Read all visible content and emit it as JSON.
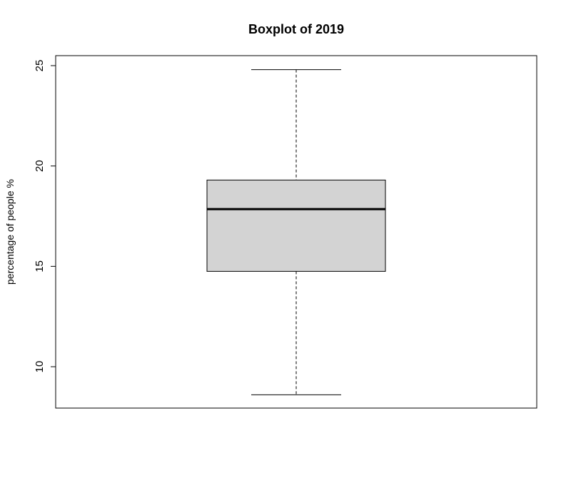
{
  "chart_data": {
    "type": "boxplot",
    "title": "Boxplot of 2019",
    "xlabel": "",
    "ylabel": "percentage of people %",
    "ylim": [
      8,
      25.5
    ],
    "yticks": [
      10,
      15,
      20,
      25
    ],
    "ytick_labels": [
      "10",
      "15",
      "20",
      "25"
    ],
    "boxes": [
      {
        "min": 8.6,
        "q1": 14.75,
        "median": 17.85,
        "q3": 19.3,
        "max": 24.8
      }
    ],
    "box_fill": "#d3d3d3",
    "line_color": "#000000",
    "grid": false
  }
}
